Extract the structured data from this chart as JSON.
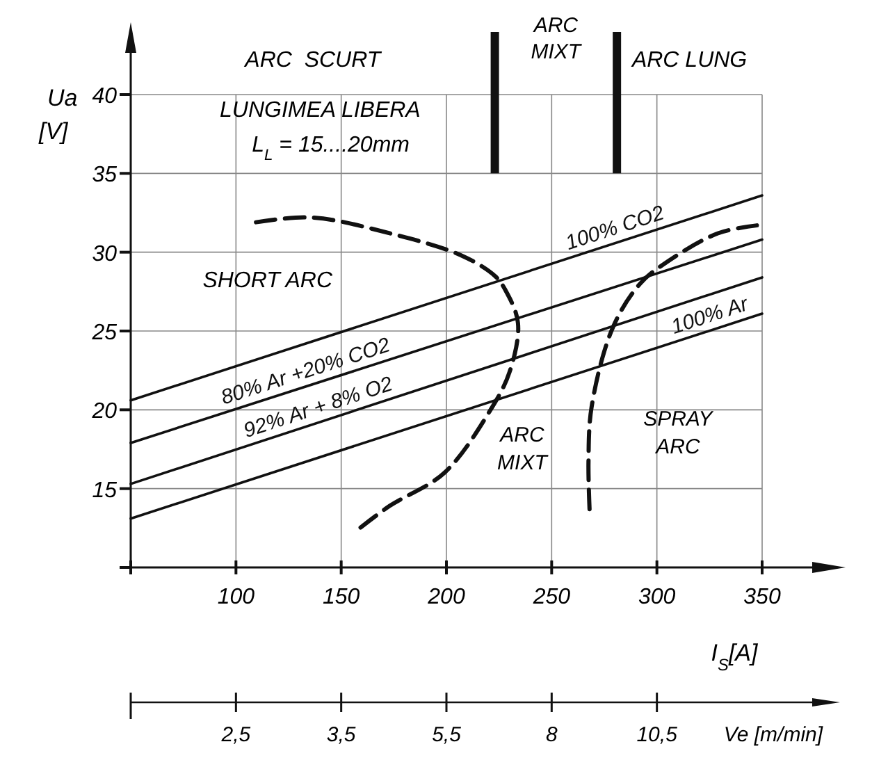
{
  "chart_data": {
    "type": "line",
    "xlabel": "I$_{S}$[A]",
    "ylabel": "Ua [V]",
    "xlim": [
      50,
      350
    ],
    "xticks": [
      {
        "value": 50,
        "label": null
      },
      100,
      150,
      200,
      250,
      300,
      350
    ],
    "ylim": [
      10,
      40
    ],
    "yticks": [
      {
        "value": 10,
        "label": null
      },
      15,
      20,
      25,
      30,
      35,
      40
    ],
    "grid": true,
    "marker": "none",
    "series": [
      {
        "name": "100% CO2",
        "color": "#111111",
        "x": [
          50,
          350
        ],
        "values": [
          20.6,
          33.6
        ]
      },
      {
        "name": "80% Ar +20% CO2",
        "color": "#111111",
        "x": [
          50,
          350
        ],
        "values": [
          17.9,
          30.8
        ]
      },
      {
        "name": "92% Ar + 8% O2",
        "color": "#111111",
        "x": [
          50,
          350
        ],
        "values": [
          15.3,
          28.4
        ]
      },
      {
        "name": "100% Ar",
        "color": "#111111",
        "x": [
          50,
          350
        ],
        "values": [
          13.1,
          26.1
        ]
      },
      {
        "color": "#111111",
        "line_style": "dashed",
        "x": [
          109.5,
          136,
          173,
          207,
          223,
          228,
          234,
          230,
          220.5,
          199,
          173,
          157
        ],
        "values": [
          31.9,
          32.2,
          31.2,
          29.8,
          28.5,
          27.6,
          25.5,
          22.4,
          19.9,
          16,
          13.9,
          12.3
        ]
      },
      {
        "color": "#111111",
        "line_style": "dashed",
        "x": [
          268,
          267.5,
          269,
          279,
          292,
          305,
          329,
          347.5
        ],
        "values": [
          13.7,
          16.7,
          20.2,
          25.2,
          28,
          29.4,
          31.2,
          31.7
        ]
      }
    ],
    "ref_lines": [
      {
        "axis": "x",
        "value": 223,
        "color": "#111111"
      },
      {
        "axis": "x",
        "value": 281,
        "color": "#111111"
      }
    ],
    "annotations": [
      "ARC  SCURT",
      "ARC MIXT",
      "ARC LUNG",
      "LUNGIMEA LIBERA",
      "L$_{L}$ = 15....20mm",
      "SHORT ARC",
      "ARC MIXT",
      "SPRAY ARC",
      "2,5",
      "3,5",
      "5,5",
      "8",
      "10,5",
      "Ve [m/min]"
    ]
  }
}
